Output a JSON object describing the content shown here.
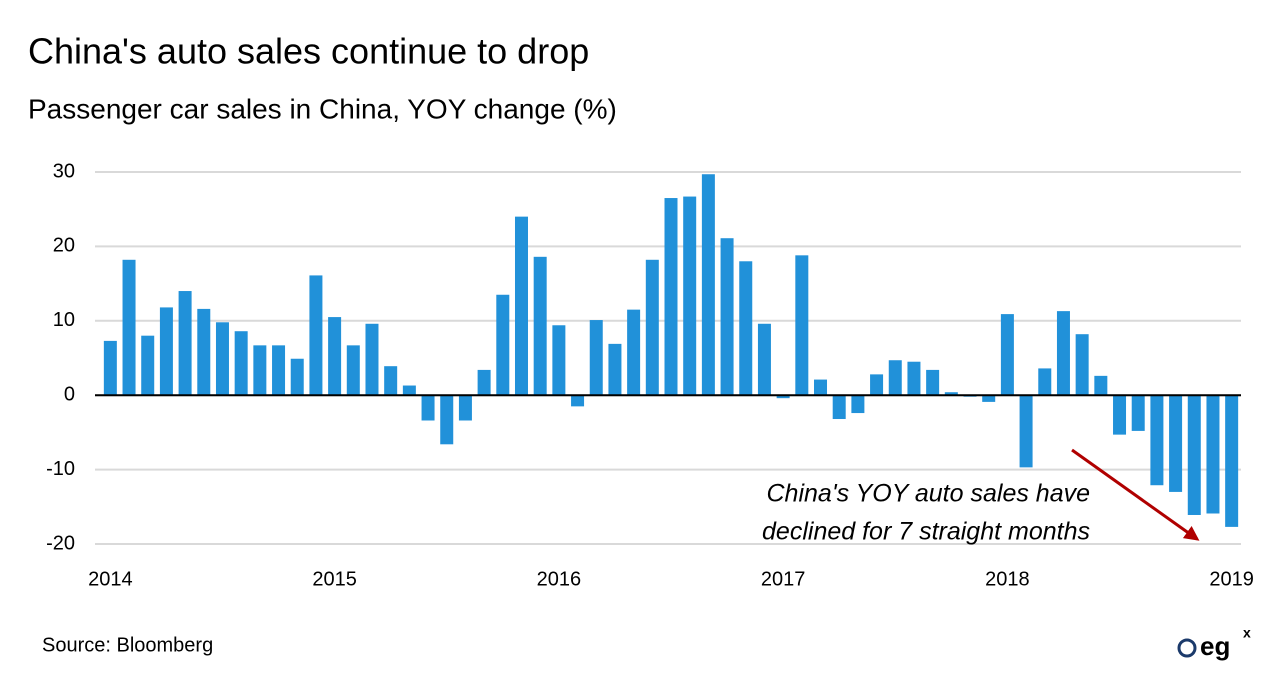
{
  "chart_data": {
    "type": "bar",
    "title": "China's auto sales continue to drop",
    "subtitle": "Passenger car sales in China, YOY change (%)",
    "categories": [
      "2014",
      null,
      null,
      null,
      null,
      null,
      null,
      null,
      null,
      null,
      null,
      null,
      "2015",
      null,
      null,
      null,
      null,
      null,
      null,
      null,
      null,
      null,
      null,
      null,
      "2016",
      null,
      null,
      null,
      null,
      null,
      null,
      null,
      null,
      null,
      null,
      null,
      "2017",
      null,
      null,
      null,
      null,
      null,
      null,
      null,
      null,
      null,
      null,
      null,
      "2018",
      null,
      null,
      null,
      null,
      null,
      null,
      null,
      null,
      null,
      null,
      null,
      "2019"
    ],
    "values": [
      7.3,
      18.2,
      8.0,
      11.8,
      14.0,
      11.6,
      9.8,
      8.6,
      6.7,
      6.7,
      4.9,
      16.1,
      10.5,
      6.7,
      9.6,
      3.9,
      1.3,
      -3.4,
      -6.6,
      -3.4,
      3.4,
      13.5,
      24.0,
      18.6,
      9.4,
      -1.5,
      10.1,
      6.9,
      11.5,
      18.2,
      26.5,
      26.7,
      29.7,
      21.1,
      18.0,
      9.6,
      -0.4,
      18.8,
      2.1,
      -3.2,
      -2.4,
      2.8,
      4.7,
      4.5,
      3.4,
      0.4,
      -0.2,
      -0.9,
      10.9,
      -9.7,
      3.6,
      11.3,
      8.2,
      2.6,
      -5.3,
      -4.8,
      -12.1,
      -13.0,
      -16.1,
      -15.9,
      -17.7
    ],
    "color": "#2191d9",
    "ylim": [
      -20,
      30
    ],
    "yticks": [
      -20,
      -10,
      0,
      10,
      20,
      30
    ],
    "grid": true,
    "annotation": [
      "China's  YOY auto sales have",
      "declined for 7 straight months"
    ],
    "annotation_color": "#b00000",
    "source": "Source:  Bloomberg",
    "logo": {
      "text": "eg",
      "sup": "x"
    }
  }
}
